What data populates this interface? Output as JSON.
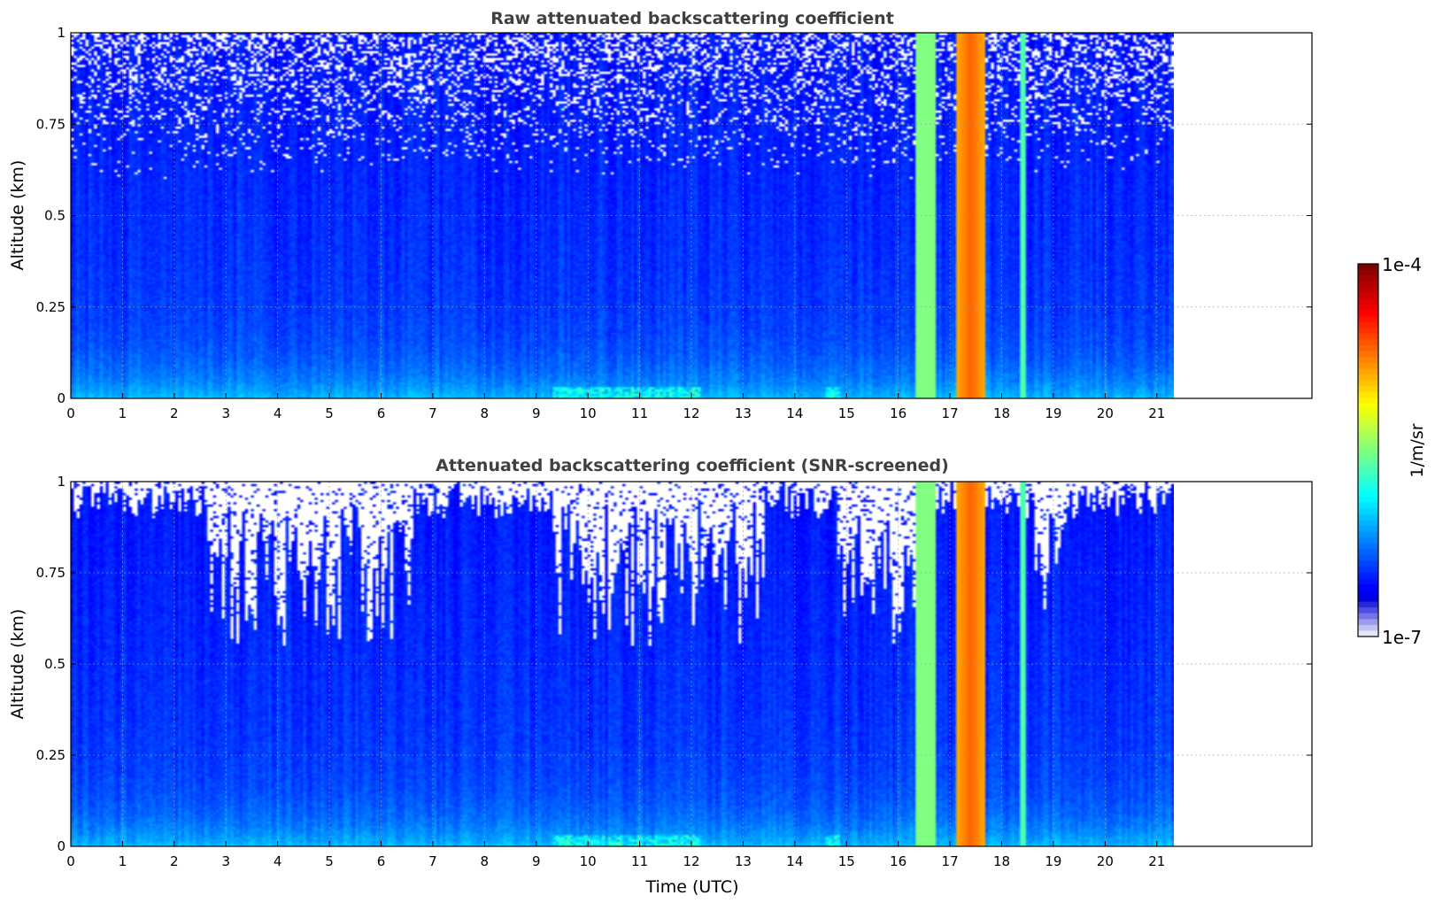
{
  "chart_data": [
    {
      "type": "heatmap",
      "panel": "top",
      "title": "Raw attenuated backscattering coefficient",
      "xlabel": "",
      "ylabel": "Altitude (km)",
      "xlim": [
        0,
        24
      ],
      "ylim": [
        0,
        1
      ],
      "data_end_hour": 21.33,
      "xticks": [
        "0",
        "1",
        "2",
        "3",
        "4",
        "5",
        "6",
        "7",
        "8",
        "9",
        "10",
        "11",
        "12",
        "13",
        "14",
        "15",
        "16",
        "17",
        "18",
        "19",
        "20",
        "21"
      ],
      "yticks": [
        "0",
        "0.25",
        "0.5",
        "0.75",
        "1"
      ],
      "grid": true,
      "screening": "none",
      "features": [
        {
          "hour_start": 16.35,
          "hour_end": 16.75,
          "level": "medium-high"
        },
        {
          "hour_start": 17.1,
          "hour_end": 17.7,
          "level": "high"
        },
        {
          "hour_start": 18.37,
          "hour_end": 18.45,
          "level": "medium"
        }
      ]
    },
    {
      "type": "heatmap",
      "panel": "bottom",
      "title": "Attenuated backscattering coefficient (SNR-screened)",
      "xlabel": "Time (UTC)",
      "ylabel": "Altitude (km)",
      "xlim": [
        0,
        24
      ],
      "ylim": [
        0,
        1
      ],
      "data_end_hour": 21.33,
      "xticks": [
        "0",
        "1",
        "2",
        "3",
        "4",
        "5",
        "6",
        "7",
        "8",
        "9",
        "10",
        "11",
        "12",
        "13",
        "14",
        "15",
        "16",
        "17",
        "18",
        "19",
        "20",
        "21"
      ],
      "yticks": [
        "0",
        "0.25",
        "0.5",
        "0.75",
        "1"
      ],
      "grid": true,
      "screening": "snr",
      "features": [
        {
          "hour_start": 16.35,
          "hour_end": 16.75,
          "level": "medium-high"
        },
        {
          "hour_start": 17.1,
          "hour_end": 17.7,
          "level": "high"
        },
        {
          "hour_start": 18.37,
          "hour_end": 18.45,
          "level": "medium"
        }
      ]
    }
  ],
  "colorbar": {
    "max_label": "1e-4",
    "min_label": "1e-7",
    "unit": "1/m/sr",
    "colormap": "jet"
  }
}
